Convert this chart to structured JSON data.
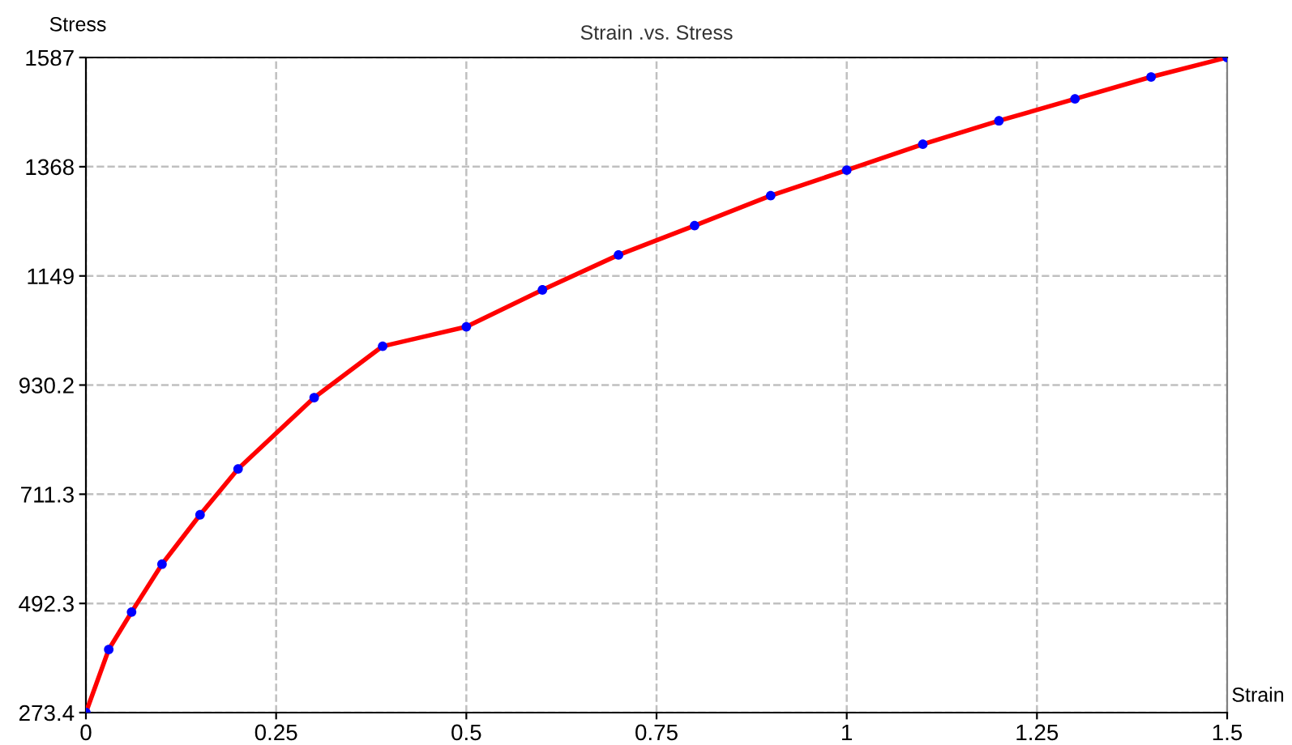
{
  "chart_data": {
    "type": "line",
    "title": "Strain .vs. Stress",
    "xlabel": "Strain",
    "ylabel": "Stress",
    "x": [
      0,
      0.03,
      0.06,
      0.1,
      0.15,
      0.2,
      0.3,
      0.39,
      0.5,
      0.6,
      0.7,
      0.8,
      0.9,
      1.0,
      1.1,
      1.2,
      1.3,
      1.4,
      1.5
    ],
    "series": [
      {
        "color": "#ff0000",
        "colors": [
          "#0000ff",
          "#0000ff",
          "#0000ff",
          "#0000ff",
          "#0000ff",
          "#0000ff",
          "#0000ff",
          "#0000ff",
          "#0000ff",
          "#0000ff",
          "#0000ff",
          "#0000ff",
          "#0000ff",
          "#0000ff",
          "#0000ff",
          "#0000ff",
          "#0000ff",
          "#0000ff",
          "#0000ff"
        ],
        "values": [
          273.4,
          400,
          475,
          571,
          670,
          762,
          905,
          1008,
          1047,
          1121,
          1191,
          1250,
          1310,
          1361,
          1413,
          1460,
          1504,
          1548,
          1587
        ]
      }
    ],
    "xlim": [
      0,
      1.5
    ],
    "ylim": [
      273.4,
      1587
    ],
    "xticks": [
      {
        "value": 0,
        "label": "0"
      },
      0.25,
      0.5,
      0.75,
      {
        "value": 1,
        "label": "1"
      },
      1.25,
      1.5
    ],
    "yticks": [
      273.4,
      492.3,
      711.3,
      930.2,
      1149,
      1368,
      1587
    ],
    "grid": true,
    "marker": "circle",
    "line_style": "solid"
  }
}
